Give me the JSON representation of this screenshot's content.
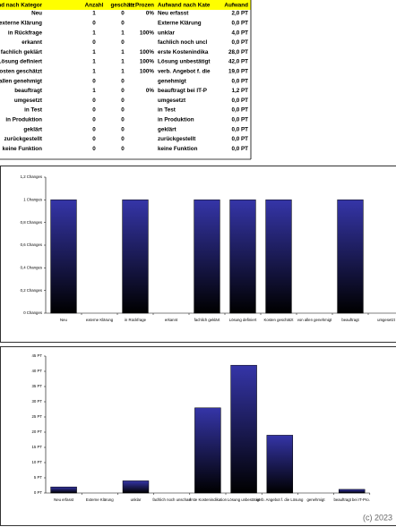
{
  "table": {
    "header": [
      "Aufwand nach Kategor",
      "Anzahl",
      "geschätz",
      "in Prozen",
      "Aufwand nach Kate",
      "Aufwand"
    ],
    "rows": [
      [
        "Neu",
        1,
        0,
        "0%",
        "Neu erfasst",
        "2,0 PT"
      ],
      [
        "externe Klärung",
        0,
        0,
        null,
        "Externe Klärung",
        "0,0 PT"
      ],
      [
        "in Rückfrage",
        1,
        1,
        "100%",
        "unklar",
        "4,0 PT"
      ],
      [
        "erkannt",
        0,
        0,
        null,
        "fachlich noch uncl",
        "0,0 PT"
      ],
      [
        "fachlich geklärt",
        1,
        1,
        "100%",
        "erste Kostenindika",
        "28,0 PT"
      ],
      [
        "Lösung definiert",
        1,
        1,
        "100%",
        "Lösung unbestätigt",
        "42,0 PT"
      ],
      [
        "Kosten geschätzt",
        1,
        1,
        "100%",
        "verb. Angebot f. die",
        "19,0 PT"
      ],
      [
        "von allen genehmigt",
        0,
        0,
        null,
        "genehmigt",
        "0,0 PT"
      ],
      [
        "beauftragt",
        1,
        0,
        "0%",
        "beauftragt bei IT-P",
        "1,2 PT"
      ],
      [
        "umgesetzt",
        0,
        0,
        null,
        "umgesetzt",
        "0,0 PT"
      ],
      [
        "in Test",
        0,
        0,
        null,
        "in Test",
        "0,0 PT"
      ],
      [
        "in Produktion",
        0,
        0,
        null,
        "in Produktion",
        "0,0 PT"
      ],
      [
        "geklärt",
        0,
        0,
        null,
        "geklärt",
        "0,0 PT"
      ],
      [
        "zurückgestellt",
        0,
        0,
        null,
        "zurückgestellt",
        "0,0 PT"
      ],
      [
        "keine Funktion",
        0,
        0,
        null,
        "keine Funktion",
        "0,0 PT"
      ]
    ]
  },
  "chart_data": [
    {
      "type": "bar",
      "color": "#3535a8",
      "categories": [
        "Neu",
        "externe Klärung",
        "in Rückfrage",
        "erkannt",
        "fachlich geklärt",
        "Lösung definiert",
        "Kosten geschätzt",
        "von allen genehmigt",
        "beauftragt",
        "umgesetzt"
      ],
      "values": [
        1,
        0,
        1,
        0,
        1,
        1,
        1,
        0,
        1,
        0
      ],
      "ylim": [
        0,
        1.2
      ],
      "yticks": [
        {
          "value": 0,
          "label": "0 Changes"
        },
        {
          "value": 0.2,
          "label": "0,2 Changes"
        },
        {
          "value": 0.4,
          "label": "0,4 Changes"
        },
        {
          "value": 0.6,
          "label": "0,6 Changes"
        },
        {
          "value": 0.8,
          "label": "0,8 Changes"
        },
        {
          "value": 1,
          "label": "1 Changes"
        },
        {
          "value": 1.2,
          "label": "1,2 Changes"
        }
      ],
      "grid": false
    },
    {
      "type": "bar",
      "color": "#3535a8",
      "categories": [
        "Neu erfasst",
        "Externe Klärung",
        "unklar",
        "fachlich noch unscharf",
        "erste Kostenindikation",
        "Lösung unbestätigt",
        "verb. Angebot f. die Lösung",
        "genehmigt",
        "beauftragt bei IT-Pro."
      ],
      "values": [
        2,
        0,
        4,
        0,
        28,
        42,
        19,
        0,
        1.2
      ],
      "ylim": [
        0,
        45
      ],
      "yticks": [
        {
          "value": 0,
          "label": "0 PT"
        },
        {
          "value": 5,
          "label": "5 PT"
        },
        {
          "value": 10,
          "label": "10 PT"
        },
        {
          "value": 15,
          "label": "15 PT"
        },
        {
          "value": 20,
          "label": "20 PT"
        },
        {
          "value": 25,
          "label": "25 PT"
        },
        {
          "value": 30,
          "label": "30 PT"
        },
        {
          "value": 35,
          "label": "35 PT"
        },
        {
          "value": 40,
          "label": "40 PT"
        },
        {
          "value": 45,
          "label": "45 PT"
        }
      ],
      "grid": false
    }
  ],
  "copyright": "(c) 2023"
}
